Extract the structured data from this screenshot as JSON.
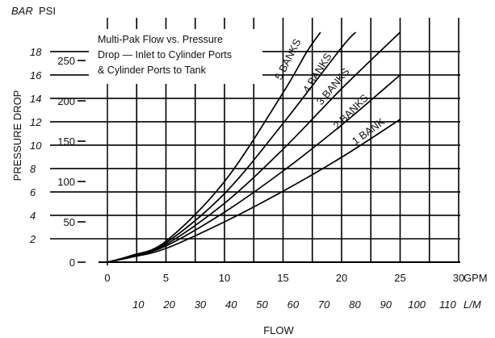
{
  "chart_data": {
    "type": "line",
    "title": "",
    "annotation_lines": [
      "Multi-Pak Flow vs. Pressure",
      "Drop — Inlet to Cylinder Ports",
      "& Cylinder Ports to Tank"
    ],
    "ylabel": "PRESSURE DROP",
    "xlabel": "FLOW",
    "y_units": {
      "bar": "BAR",
      "psi": "PSI"
    },
    "x_units": {
      "gpm": "GPM",
      "lpm": "L/M"
    },
    "psi_ticks": [
      "0",
      "50",
      "100",
      "150",
      "200",
      "250"
    ],
    "bar_ticks": [
      "2",
      "4",
      "6",
      "8",
      "10",
      "12",
      "14",
      "16",
      "18"
    ],
    "gpm_ticks": [
      "0",
      "5",
      "10",
      "15",
      "20",
      "25",
      "30"
    ],
    "lpm_ticks": [
      "10",
      "20",
      "30",
      "40",
      "50",
      "60",
      "70",
      "80",
      "90",
      "100",
      "110"
    ],
    "xlim_gpm": [
      0,
      30
    ],
    "ylim_psi": [
      0,
      285
    ],
    "grid": true,
    "series": [
      {
        "name": "1 BANK",
        "x": [
          0,
          2,
          5,
          10,
          15,
          20,
          25
        ],
        "y": [
          0,
          6,
          17,
          50,
          88,
          130,
          177
        ]
      },
      {
        "name": "2 BANKS",
        "x": [
          0,
          2,
          5,
          10,
          15,
          20,
          25
        ],
        "y": [
          0,
          7,
          20,
          62,
          113,
          170,
          232
        ]
      },
      {
        "name": "3 BANKS",
        "x": [
          0,
          2,
          5,
          10,
          15,
          20,
          25
        ],
        "y": [
          0,
          7,
          22,
          73,
          140,
          215,
          285
        ]
      },
      {
        "name": "4 BANKS",
        "x": [
          0,
          2,
          5,
          10,
          15,
          20,
          21.2
        ],
        "y": [
          0,
          8,
          24,
          85,
          172,
          266,
          285
        ]
      },
      {
        "name": "5 BANKS",
        "x": [
          0,
          2,
          5,
          10,
          15,
          17,
          18.2
        ],
        "y": [
          0,
          8,
          26,
          100,
          210,
          260,
          285
        ]
      }
    ]
  }
}
